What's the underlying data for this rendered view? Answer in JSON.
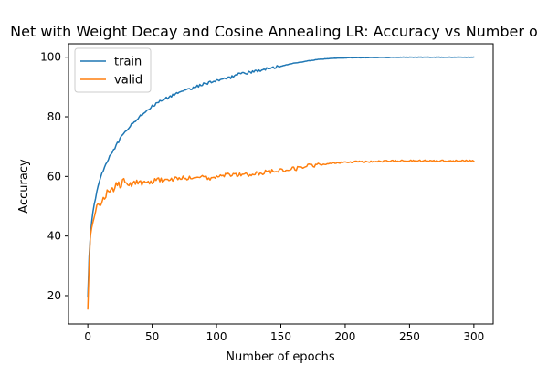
{
  "chart_data": {
    "type": "line",
    "title": "Net with Weight Decay and Cosine Annealing LR: Accuracy vs Number o",
    "xlabel": "Number of epochs",
    "ylabel": "Accuracy",
    "xlim": [
      -15,
      315
    ],
    "ylim": [
      10.5,
      104.5
    ],
    "xticks": [
      0,
      50,
      100,
      150,
      200,
      250,
      300
    ],
    "yticks": [
      20,
      40,
      60,
      80,
      100
    ],
    "grid": false,
    "legend": "top-left",
    "series": [
      {
        "name": "train",
        "color": "#1f77b4",
        "x": [
          0,
          1,
          2,
          3,
          4,
          5,
          6,
          8,
          10,
          12,
          15,
          18,
          20,
          25,
          30,
          35,
          40,
          45,
          50,
          55,
          60,
          70,
          80,
          90,
          100,
          110,
          115,
          120,
          130,
          140,
          150,
          160,
          170,
          180,
          190,
          200,
          220,
          250,
          280,
          300
        ],
        "y": [
          19.5,
          33,
          40,
          45,
          48.5,
          51,
          53,
          56.5,
          59.5,
          62,
          65,
          67.5,
          69,
          72.5,
          75.5,
          78,
          80,
          82,
          83.5,
          85,
          86,
          88,
          89.5,
          91,
          92,
          93,
          94.2,
          94.5,
          95.2,
          96.3,
          97,
          98,
          98.7,
          99.3,
          99.6,
          99.8,
          99.9,
          100,
          100,
          100
        ]
      },
      {
        "name": "valid",
        "color": "#ff7f0e",
        "x": [
          0,
          1,
          2,
          3,
          5,
          7,
          10,
          13,
          15,
          18,
          20,
          23,
          25,
          28,
          30,
          35,
          40,
          45,
          50,
          55,
          60,
          65,
          70,
          75,
          80,
          85,
          90,
          95,
          100,
          110,
          120,
          130,
          140,
          150,
          160,
          170,
          180,
          190,
          200,
          220,
          240,
          260,
          280,
          300
        ],
        "y": [
          15.5,
          30,
          40,
          43,
          47,
          49.5,
          51,
          52.5,
          55.5,
          55.5,
          55.5,
          57.5,
          57,
          58.5,
          57,
          57.5,
          58,
          58,
          57.5,
          59.5,
          58.5,
          59,
          59.5,
          59.5,
          59.5,
          60,
          60,
          59.5,
          60,
          60.5,
          60.5,
          61,
          61.5,
          62,
          62.5,
          63.5,
          64,
          64.5,
          64.8,
          65,
          65.2,
          65.2,
          65.2,
          65.2
        ]
      }
    ]
  }
}
